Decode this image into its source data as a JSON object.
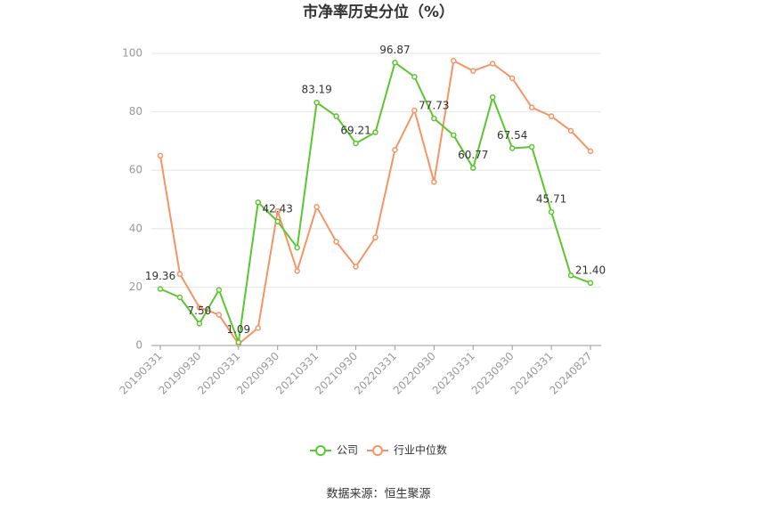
{
  "chart_data": {
    "type": "line",
    "title": "市净率历史分位（%）",
    "categories": [
      "20190331",
      null,
      "20190930",
      null,
      "20200331",
      null,
      "20200930",
      null,
      "20210331",
      null,
      "20210930",
      null,
      "20220331",
      null,
      "20220930",
      null,
      "20230331",
      null,
      "20230930",
      null,
      "20240331",
      null,
      "20240827"
    ],
    "series": [
      {
        "name": "公司",
        "color": "#5ac72f",
        "values": [
          19.36,
          16.5,
          7.5,
          19,
          1.09,
          49,
          42.43,
          33.5,
          83.19,
          78.5,
          69.21,
          73,
          96.87,
          92,
          77.73,
          72,
          60.77,
          85,
          67.54,
          68,
          45.71,
          24,
          21.4
        ],
        "value_labels": [
          "19.36",
          null,
          "7.50",
          null,
          "1.09",
          null,
          "42.43",
          null,
          "83.19",
          null,
          "69.21",
          null,
          "96.87",
          null,
          "77.73",
          null,
          "60.77",
          null,
          "67.54",
          null,
          "45.71",
          null,
          "21.40"
        ]
      },
      {
        "name": "行业中位数",
        "color": "#f79465",
        "values": [
          65,
          24.5,
          13,
          10.5,
          0.5,
          6,
          46,
          25.5,
          47.5,
          35.5,
          27,
          37,
          67,
          80.5,
          56,
          97.5,
          94,
          96.5,
          91.5,
          81.5,
          78.5,
          73.5,
          66.5
        ]
      }
    ],
    "ylim": [
      0,
      100
    ],
    "yticks": [
      0,
      20,
      40,
      60,
      80,
      100
    ],
    "grid": true,
    "legend": "bottom",
    "source": "数据来源：恒生聚源"
  }
}
